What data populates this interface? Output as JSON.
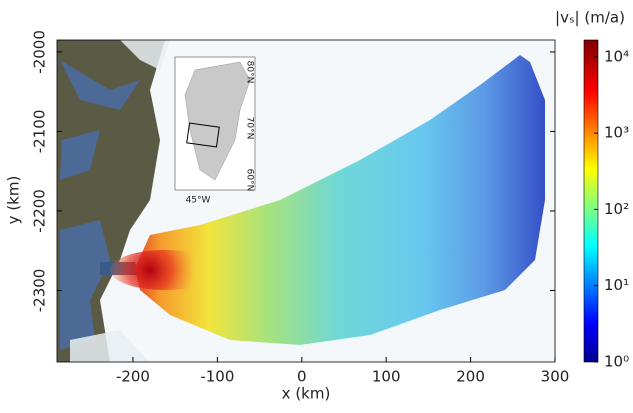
{
  "chart_data": {
    "type": "map",
    "xlabel": "x (km)",
    "ylabel": "y (km)",
    "xlim": [
      -290,
      300
    ],
    "ylim": [
      -2390,
      -1985
    ],
    "xticks": [
      -200,
      -100,
      0,
      100,
      200,
      300
    ],
    "yticks": [
      -2000,
      -2100,
      -2200,
      -2300
    ],
    "colorbar": {
      "title": "|vₛ| (m/a)",
      "log_scale": true,
      "lim": [
        1,
        16600
      ],
      "ticks": [
        {
          "value": 1,
          "label": "10⁰"
        },
        {
          "value": 10,
          "label": "10¹"
        },
        {
          "value": 100,
          "label": "10²"
        },
        {
          "value": 1000,
          "label": "10³"
        },
        {
          "value": 10000,
          "label": "10⁴"
        }
      ]
    },
    "inset": {
      "labels": [
        "80°N",
        "70°N",
        "60°N",
        "45°W"
      ]
    }
  }
}
